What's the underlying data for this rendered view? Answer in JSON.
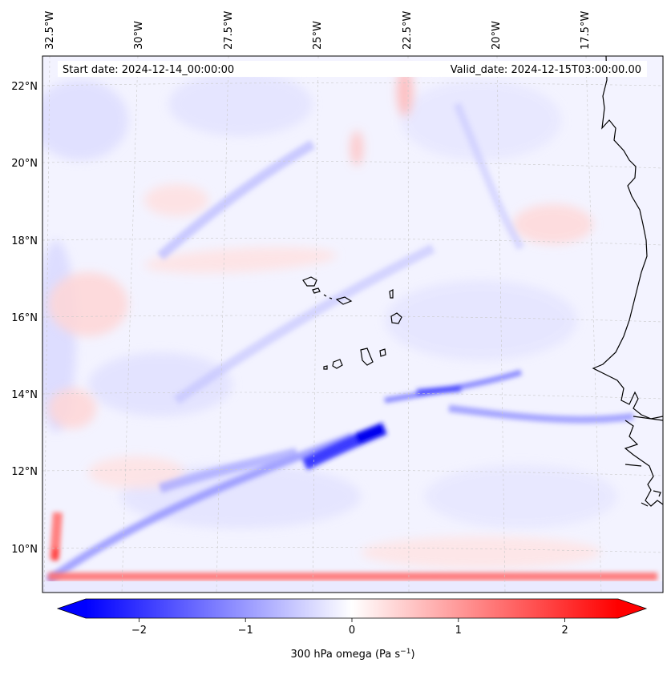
{
  "map": {
    "start_date": "Start date: 2024-12-14_00:00:00",
    "valid_date": "Valid_date: 2024-12-15T03:00:00.00",
    "lon_labels": [
      "32.5°W",
      "30°W",
      "27.5°W",
      "25°W",
      "22.5°W",
      "20°W",
      "17.5°W"
    ],
    "lat_labels": [
      "22°N",
      "20°N",
      "18°N",
      "16°N",
      "14°N",
      "12°N",
      "10°N"
    ],
    "field": "300 hPa omega",
    "colormap": "bwr"
  },
  "colorbar": {
    "label_main": "300 hPa omega (Pa s",
    "label_exp": "−1",
    "label_close": ")",
    "ticks": [
      "−2",
      "−1",
      "0",
      "1",
      "2"
    ],
    "tick_values": [
      -2,
      -1,
      0,
      1,
      2
    ],
    "range": [
      -2.5,
      2.5
    ],
    "extend": "both",
    "color_min": "#0000ff",
    "color_mid": "#ffffff",
    "color_max": "#ff0000"
  }
}
